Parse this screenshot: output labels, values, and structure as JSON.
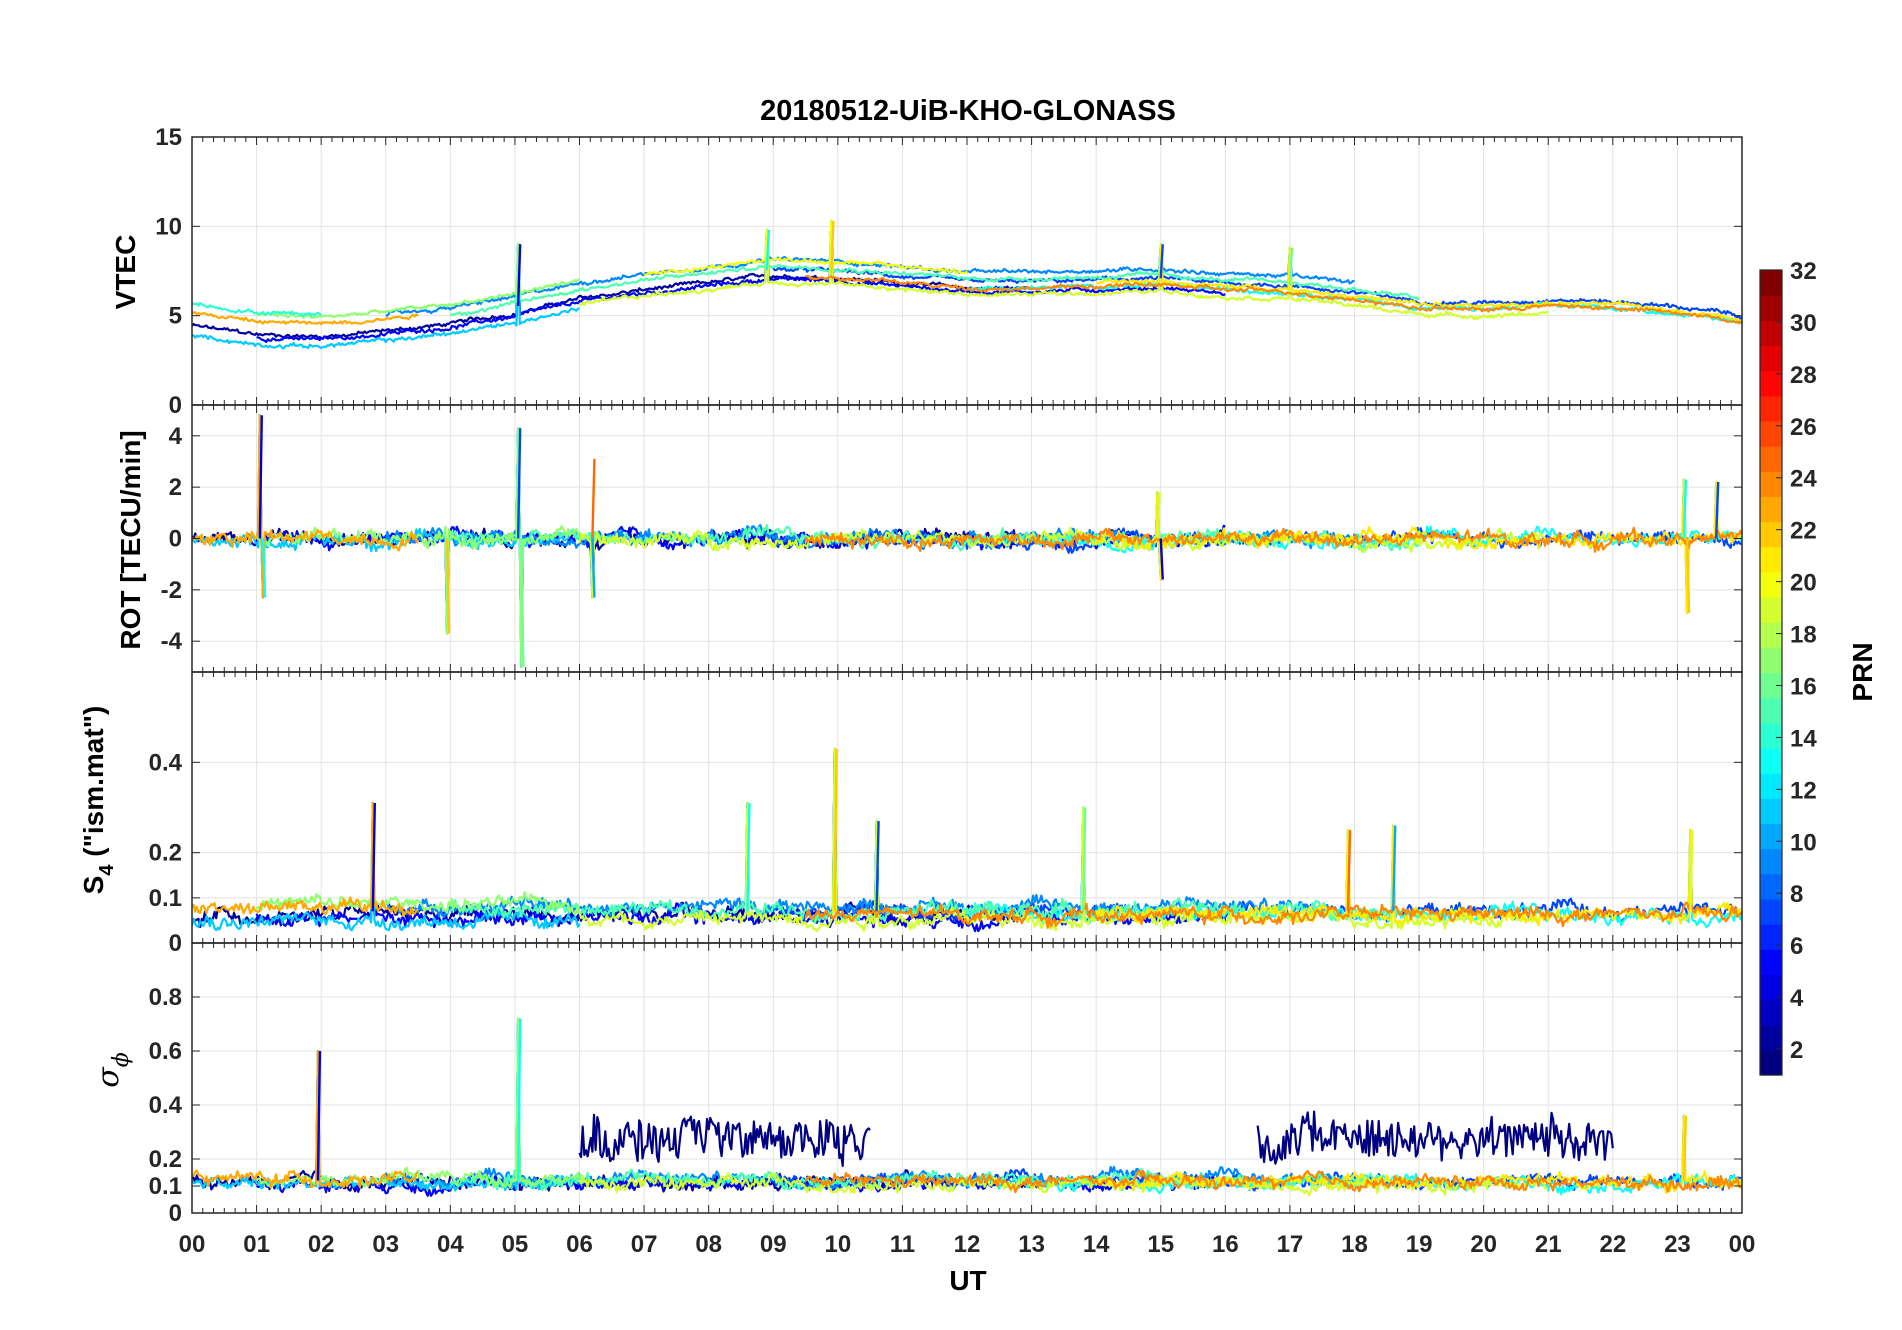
{
  "chart_data": {
    "type": "line",
    "title": "20180512-UiB-KHO-GLONASS",
    "xlabel": "UT",
    "x_ticks": [
      "00",
      "01",
      "02",
      "03",
      "04",
      "05",
      "06",
      "07",
      "08",
      "09",
      "10",
      "11",
      "12",
      "13",
      "14",
      "15",
      "16",
      "17",
      "18",
      "19",
      "20",
      "21",
      "22",
      "23",
      "00"
    ],
    "xlim_hours": [
      0,
      24
    ],
    "grid": true,
    "colorbar": {
      "label": "PRN",
      "range": [
        1,
        32
      ],
      "ticks": [
        "2",
        "4",
        "6",
        "8",
        "10",
        "12",
        "14",
        "16",
        "18",
        "20",
        "22",
        "24",
        "26",
        "28",
        "30",
        "32"
      ],
      "colormap": "jet"
    },
    "panels": [
      {
        "id": "vtec",
        "ylabel": "VTEC",
        "ylim": [
          0,
          15
        ],
        "ytick_values": [
          0,
          5,
          10,
          15
        ],
        "yticks": [
          "0",
          "5",
          "10",
          "15"
        ],
        "baseline": [
          [
            0,
            4.8
          ],
          [
            1,
            4.3
          ],
          [
            2,
            4.2
          ],
          [
            3,
            4.5
          ],
          [
            4,
            4.9
          ],
          [
            5,
            5.5
          ],
          [
            6,
            6.3
          ],
          [
            7,
            6.8
          ],
          [
            8,
            7.2
          ],
          [
            9,
            7.6
          ],
          [
            10,
            7.5
          ],
          [
            11,
            7.2
          ],
          [
            12,
            6.9
          ],
          [
            13,
            6.9
          ],
          [
            14,
            7.0
          ],
          [
            15,
            7.1
          ],
          [
            16,
            6.8
          ],
          [
            17,
            6.7
          ],
          [
            18,
            6.3
          ],
          [
            19,
            5.8
          ],
          [
            20,
            5.7
          ],
          [
            21,
            5.9
          ],
          [
            22,
            5.8
          ],
          [
            23,
            5.5
          ],
          [
            24,
            5.0
          ]
        ],
        "spread": 0.9,
        "noise": 0.15,
        "events": [
          [
            5.05,
            9.0
          ],
          [
            8.9,
            9.8
          ],
          [
            9.9,
            10.3
          ],
          [
            15.0,
            9.0
          ],
          [
            17.0,
            8.8
          ]
        ],
        "traces": [
          {
            "prn": 2,
            "t": [
              0.0,
              13.0
            ]
          },
          {
            "prn": 5,
            "t": [
              1.0,
              16.0
            ]
          },
          {
            "prn": 7,
            "t": [
              9.0,
              24.0
            ]
          },
          {
            "prn": 9,
            "t": [
              3.0,
              18.0
            ]
          },
          {
            "prn": 11,
            "t": [
              0.0,
              6.0
            ]
          },
          {
            "prn": 13,
            "t": [
              12.0,
              24.0
            ]
          },
          {
            "prn": 15,
            "t": [
              4.0,
              19.0
            ]
          },
          {
            "prn": 17,
            "t": [
              1.0,
              6.0
            ]
          },
          {
            "prn": 19,
            "t": [
              6.0,
              21.0
            ]
          },
          {
            "prn": 21,
            "t": [
              14.0,
              24.0
            ]
          },
          {
            "prn": 23,
            "t": [
              0.0,
              3.5
            ]
          },
          {
            "prn": 24,
            "t": [
              9.5,
              24.0
            ]
          },
          {
            "prn": 14,
            "t": [
              0.0,
              2.0
            ]
          },
          {
            "prn": 20,
            "t": [
              7.0,
              12.0
            ]
          }
        ]
      },
      {
        "id": "rot",
        "ylabel": "ROT [TECU/min]",
        "ylim": [
          -5.2,
          5.2
        ],
        "ytick_values": [
          -4,
          -2,
          0,
          2,
          4
        ],
        "yticks": [
          "-4",
          "-2",
          "0",
          "2",
          "4"
        ],
        "baseline": [
          [
            0,
            0
          ],
          [
            24,
            0
          ]
        ],
        "spread": 0.05,
        "noise": 0.35,
        "events": [
          [
            1.05,
            4.8
          ],
          [
            1.1,
            -2.3
          ],
          [
            3.95,
            -3.7
          ],
          [
            5.05,
            4.3
          ],
          [
            5.1,
            -5.0
          ],
          [
            6.2,
            3.1
          ],
          [
            6.2,
            -2.3
          ],
          [
            14.95,
            1.8
          ],
          [
            15.0,
            -1.6
          ],
          [
            23.1,
            2.3
          ],
          [
            23.15,
            -2.9
          ],
          [
            23.6,
            2.2
          ]
        ],
        "traces": [
          {
            "prn": 2,
            "t": [
              0.0,
              13.0
            ]
          },
          {
            "prn": 5,
            "t": [
              1.0,
              16.0
            ]
          },
          {
            "prn": 7,
            "t": [
              9.0,
              24.0
            ]
          },
          {
            "prn": 9,
            "t": [
              3.0,
              18.0
            ]
          },
          {
            "prn": 11,
            "t": [
              0.0,
              6.0
            ]
          },
          {
            "prn": 13,
            "t": [
              12.0,
              24.0
            ]
          },
          {
            "prn": 15,
            "t": [
              4.0,
              19.0
            ]
          },
          {
            "prn": 17,
            "t": [
              1.0,
              6.0
            ]
          },
          {
            "prn": 19,
            "t": [
              6.0,
              21.0
            ]
          },
          {
            "prn": 21,
            "t": [
              14.0,
              24.0
            ]
          },
          {
            "prn": 23,
            "t": [
              0.0,
              3.5
            ]
          },
          {
            "prn": 24,
            "t": [
              9.5,
              24.0
            ]
          }
        ]
      },
      {
        "id": "s4",
        "ylabel_main": "S",
        "ylabel_sub": "4",
        "ylabel_rest": " (\"ism.mat\")",
        "ylim": [
          0,
          0.6
        ],
        "ytick_values": [
          0,
          0.1,
          0.2,
          0.4
        ],
        "yticks": [
          "0",
          "0.1",
          "0.2",
          "0.4"
        ],
        "baseline": [
          [
            0,
            0.07
          ],
          [
            24,
            0.07
          ]
        ],
        "spread": 0.02,
        "noise": 0.02,
        "events": [
          [
            2.8,
            0.31
          ],
          [
            8.6,
            0.31
          ],
          [
            9.95,
            0.43
          ],
          [
            10.6,
            0.27
          ],
          [
            13.8,
            0.3
          ],
          [
            17.9,
            0.25
          ],
          [
            18.6,
            0.26
          ],
          [
            23.2,
            0.25
          ]
        ],
        "traces": [
          {
            "prn": 2,
            "t": [
              0.0,
              13.0
            ]
          },
          {
            "prn": 5,
            "t": [
              1.0,
              16.0
            ]
          },
          {
            "prn": 7,
            "t": [
              9.0,
              24.0
            ]
          },
          {
            "prn": 9,
            "t": [
              3.0,
              18.0
            ]
          },
          {
            "prn": 11,
            "t": [
              0.0,
              6.0
            ]
          },
          {
            "prn": 13,
            "t": [
              12.0,
              24.0
            ]
          },
          {
            "prn": 15,
            "t": [
              4.0,
              19.0
            ]
          },
          {
            "prn": 17,
            "t": [
              1.0,
              6.0
            ]
          },
          {
            "prn": 19,
            "t": [
              6.0,
              21.0
            ]
          },
          {
            "prn": 21,
            "t": [
              14.0,
              24.0
            ]
          },
          {
            "prn": 23,
            "t": [
              0.0,
              3.5
            ]
          },
          {
            "prn": 24,
            "t": [
              9.5,
              24.0
            ]
          }
        ]
      },
      {
        "id": "sigphi",
        "ylabel_main": "σ",
        "ylabel_sub": "ϕ",
        "ylim": [
          0,
          1
        ],
        "ytick_values": [
          0,
          0.1,
          0.2,
          0.4,
          0.6,
          0.8
        ],
        "yticks": [
          "0",
          "0.1",
          "0.2",
          "0.4",
          "0.6",
          "0.8"
        ],
        "baseline": [
          [
            0,
            0.12
          ],
          [
            24,
            0.12
          ]
        ],
        "spread": 0.015,
        "noise": 0.03,
        "events": [
          [
            1.95,
            0.6
          ],
          [
            5.05,
            0.72
          ],
          [
            23.1,
            0.36
          ]
        ],
        "traces": [
          {
            "prn": 2,
            "t": [
              0.0,
              13.0
            ]
          },
          {
            "prn": 5,
            "t": [
              1.0,
              16.0
            ]
          },
          {
            "prn": 7,
            "t": [
              9.0,
              24.0
            ]
          },
          {
            "prn": 9,
            "t": [
              3.0,
              18.0
            ]
          },
          {
            "prn": 11,
            "t": [
              0.0,
              6.0
            ]
          },
          {
            "prn": 13,
            "t": [
              12.0,
              24.0
            ]
          },
          {
            "prn": 15,
            "t": [
              4.0,
              19.0
            ]
          },
          {
            "prn": 17,
            "t": [
              1.0,
              6.0
            ]
          },
          {
            "prn": 19,
            "t": [
              6.0,
              21.0
            ]
          },
          {
            "prn": 21,
            "t": [
              14.0,
              24.0
            ]
          },
          {
            "prn": 23,
            "t": [
              0.0,
              3.5
            ]
          },
          {
            "prn": 24,
            "t": [
              9.5,
              24.0
            ]
          },
          {
            "prn": 1,
            "t": [
              6.0,
              10.5
            ],
            "high": true
          },
          {
            "prn": 1,
            "t": [
              16.5,
              22.0
            ],
            "high": true
          }
        ]
      }
    ]
  }
}
